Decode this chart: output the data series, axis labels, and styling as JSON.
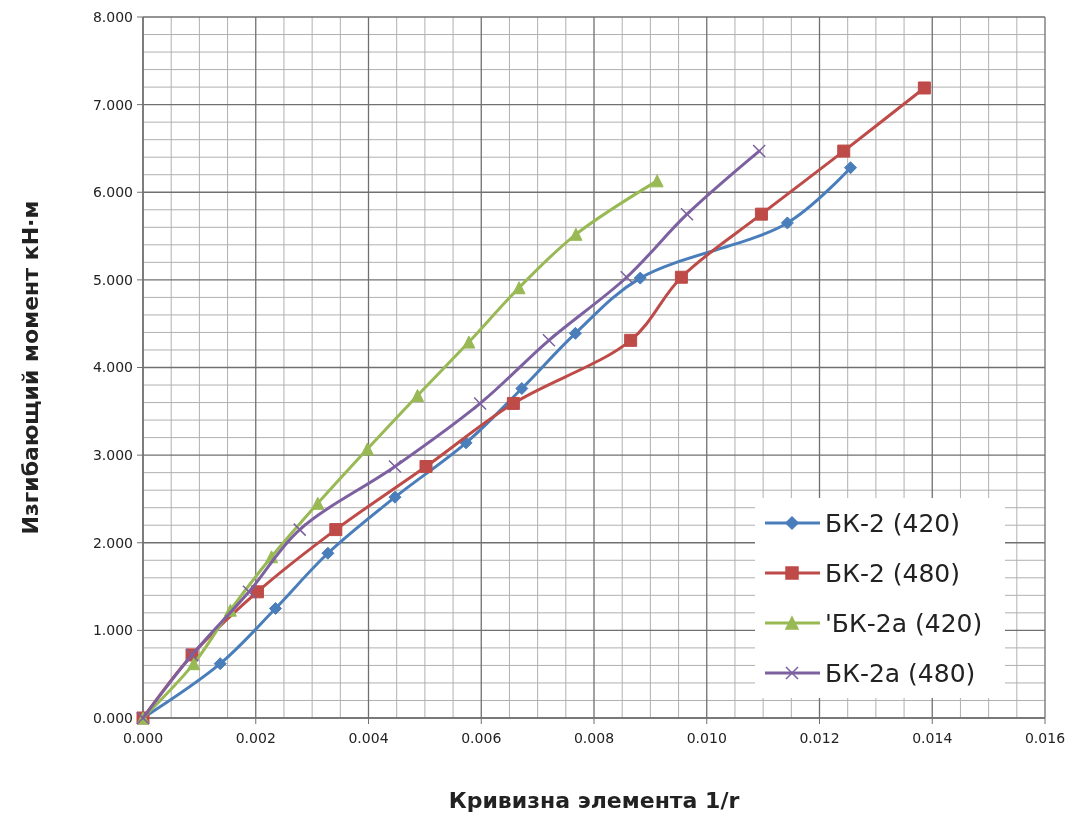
{
  "chart_data": {
    "type": "line",
    "xlabel": "Кривизна элемента 1/r",
    "ylabel": "Изгибающий момент кН·м",
    "xlim": [
      0,
      0.016
    ],
    "ylim": [
      0,
      8
    ],
    "xticks": [
      {
        "value": 0,
        "label": "0.000"
      },
      {
        "value": 0.002,
        "label": "0.002"
      },
      {
        "value": 0.004,
        "label": "0.004"
      },
      {
        "value": 0.006,
        "label": "0.006"
      },
      {
        "value": 0.008,
        "label": "0.008"
      },
      {
        "value": 0.01,
        "label": "0.010"
      },
      {
        "value": 0.012,
        "label": "0.012"
      },
      {
        "value": 0.014,
        "label": "0.014"
      },
      {
        "value": 0.016,
        "label": "0.016"
      }
    ],
    "yticks": [
      {
        "value": 0,
        "label": "0.000"
      },
      {
        "value": 1,
        "label": "1.000"
      },
      {
        "value": 2,
        "label": "2.000"
      },
      {
        "value": 3,
        "label": "3.000"
      },
      {
        "value": 4,
        "label": "4.000"
      },
      {
        "value": 5,
        "label": "5.000"
      },
      {
        "value": 6,
        "label": "6.000"
      },
      {
        "value": 7,
        "label": "7.000"
      },
      {
        "value": 8,
        "label": "8.000"
      }
    ],
    "grid": true,
    "legend": "bottom right",
    "series": [
      {
        "name": "БК-2 (420)",
        "color": "#4a7ebb",
        "marker": "diamond",
        "x": [
          0,
          0.00137,
          0.00235,
          0.00328,
          0.00447,
          0.00573,
          0.00672,
          0.00767,
          0.00882,
          0.01143,
          0.01255
        ],
        "values": [
          0,
          0.62,
          1.25,
          1.88,
          2.52,
          3.14,
          3.76,
          4.39,
          5.02,
          5.65,
          6.28
        ]
      },
      {
        "name": "БК-2 (480)",
        "color": "#be4b48",
        "marker": "square",
        "x": [
          0,
          0.00087,
          0.00203,
          0.00342,
          0.00502,
          0.00657,
          0.00865,
          0.00955,
          0.01097,
          0.01243,
          0.01386
        ],
        "values": [
          0,
          0.72,
          1.44,
          2.15,
          2.87,
          3.59,
          4.31,
          5.03,
          5.75,
          6.47,
          7.19
        ]
      },
      {
        "name": "'БК-2а (420)",
        "color": "#98b954",
        "marker": "triangle",
        "x": [
          0,
          0.0009,
          0.00155,
          0.00228,
          0.0031,
          0.00398,
          0.00487,
          0.00578,
          0.00667,
          0.00768,
          0.00912
        ],
        "values": [
          0,
          0.62,
          1.23,
          1.84,
          2.45,
          3.07,
          3.68,
          4.29,
          4.91,
          5.52,
          6.13
        ]
      },
      {
        "name": "БК-2а (480)",
        "color": "#7d60a0",
        "marker": "cross",
        "x": [
          0,
          0.00087,
          0.00188,
          0.00278,
          0.00447,
          0.00598,
          0.0072,
          0.00858,
          0.00965,
          0.01093
        ],
        "values": [
          0,
          0.72,
          1.44,
          2.15,
          2.87,
          3.59,
          4.31,
          5.03,
          5.75,
          6.47
        ]
      }
    ]
  }
}
